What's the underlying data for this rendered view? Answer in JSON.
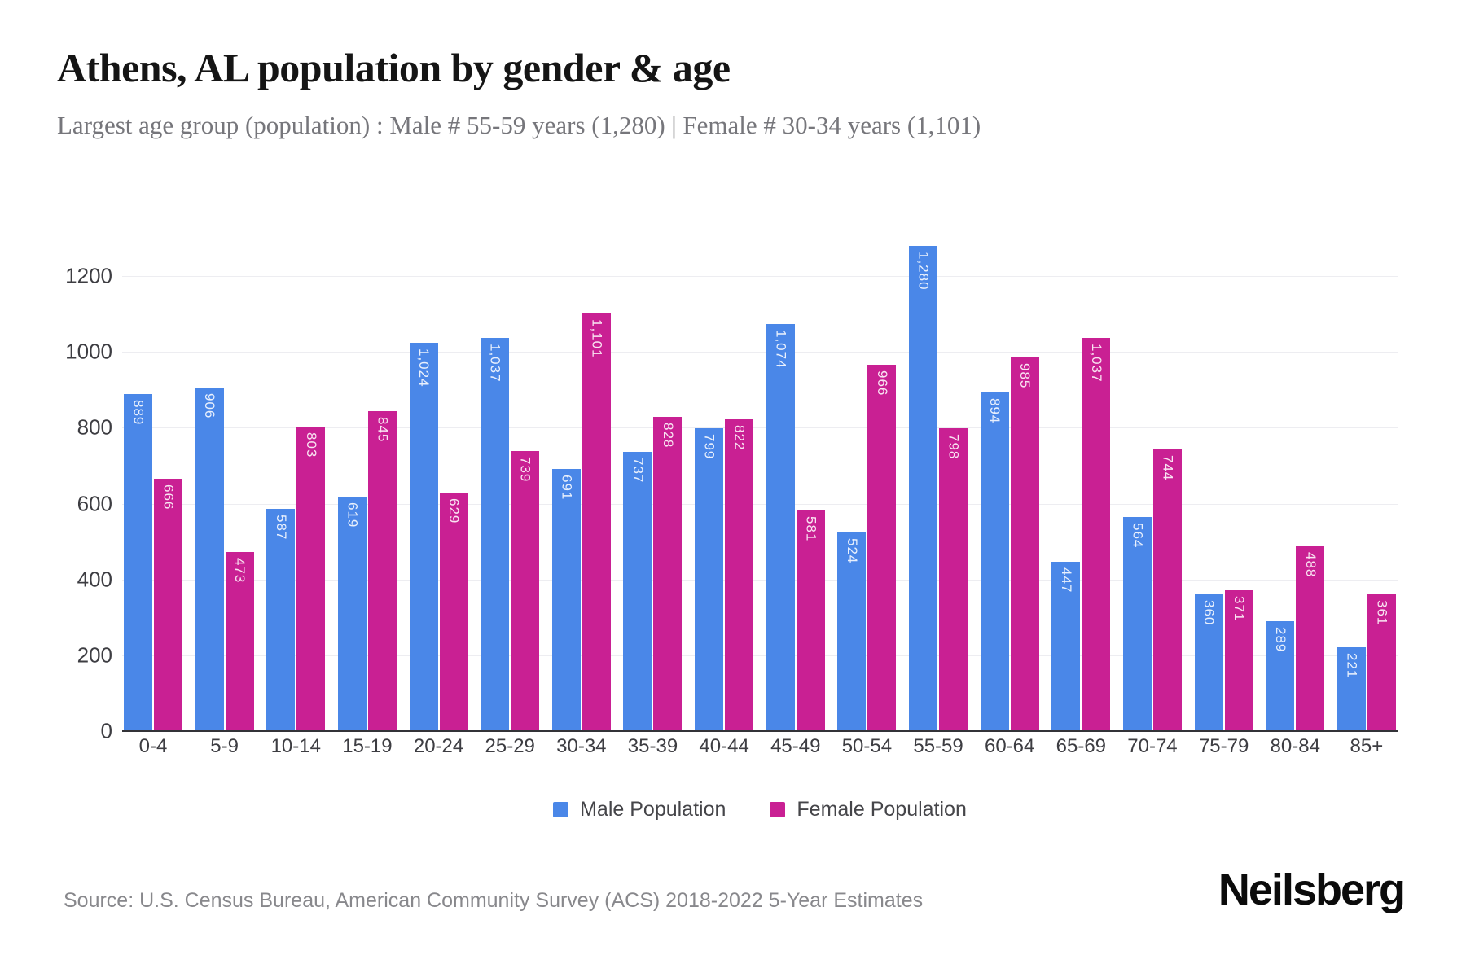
{
  "header": {
    "title": "Athens, AL population by gender & age",
    "subtitle": "Largest age group (population) : Male # 55-59 years (1,280) | Female # 30-34 years (1,101)"
  },
  "chart_data": {
    "type": "bar",
    "title": "Athens, AL population by gender & age",
    "categories": [
      "0-4",
      "5-9",
      "10-14",
      "15-19",
      "20-24",
      "25-29",
      "30-34",
      "35-39",
      "40-44",
      "45-49",
      "50-54",
      "55-59",
      "60-64",
      "65-69",
      "70-74",
      "75-79",
      "80-84",
      "85+"
    ],
    "series": [
      {
        "name": "Male Population",
        "color": "#4a87e8",
        "values": [
          889,
          906,
          587,
          619,
          1024,
          1037,
          691,
          737,
          799,
          1074,
          524,
          1280,
          894,
          447,
          564,
          360,
          289,
          221
        ]
      },
      {
        "name": "Female Population",
        "color": "#c92093",
        "values": [
          666,
          473,
          803,
          845,
          629,
          739,
          1101,
          828,
          822,
          581,
          966,
          798,
          985,
          1037,
          744,
          371,
          488,
          361
        ]
      }
    ],
    "xlabel": "",
    "ylabel": "",
    "ylim": [
      0,
      1370
    ],
    "yticks": [
      0,
      200,
      400,
      600,
      800,
      1000,
      1200
    ],
    "grid": true,
    "legend_position": "bottom",
    "bar_value_labels": "rotated, white, inside top of each bar, thousands separated with commas"
  },
  "footer": {
    "source": "Source: U.S. Census Bureau, American Community Survey (ACS) 2018-2022 5-Year Estimates",
    "brand": "Neilsberg"
  }
}
